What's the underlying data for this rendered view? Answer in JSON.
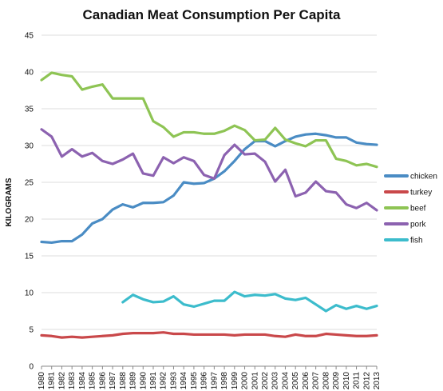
{
  "chart_data": {
    "type": "line",
    "title": "Canadian Meat Consumption Per Capita",
    "xlabel": "",
    "ylabel": "KILOGRAMS",
    "ylim": [
      0,
      45
    ],
    "yticks": [
      0,
      5,
      10,
      15,
      20,
      25,
      30,
      35,
      40,
      45
    ],
    "grid": "horizontal",
    "legend_position": "right",
    "x": [
      "1980",
      "1981",
      "1982",
      "1983",
      "1984",
      "1985",
      "1986",
      "1987",
      "1988",
      "1989",
      "1990",
      "1991",
      "1992",
      "1993",
      "1994",
      "1995",
      "1996",
      "1997",
      "1998",
      "1999",
      "2000",
      "2001",
      "2002",
      "2003",
      "2004",
      "2005",
      "2006",
      "2007",
      "2008",
      "2009",
      "2010",
      "2011",
      "2012",
      "2013"
    ],
    "series": [
      {
        "name": "chicken",
        "color": "#4a8cc4",
        "values": [
          16.9,
          16.8,
          17.0,
          17.0,
          17.9,
          19.4,
          20.0,
          21.3,
          22.0,
          21.6,
          22.2,
          22.2,
          22.3,
          23.2,
          25.0,
          24.8,
          24.9,
          25.5,
          26.5,
          27.9,
          29.5,
          30.6,
          30.6,
          29.9,
          30.6,
          31.2,
          31.5,
          31.6,
          31.4,
          31.1,
          31.1,
          30.4,
          30.2,
          30.1
        ]
      },
      {
        "name": "turkey",
        "color": "#c9484a",
        "values": [
          4.2,
          4.1,
          3.9,
          4.0,
          3.9,
          4.0,
          4.1,
          4.2,
          4.4,
          4.5,
          4.5,
          4.5,
          4.6,
          4.4,
          4.4,
          4.3,
          4.3,
          4.3,
          4.3,
          4.2,
          4.3,
          4.3,
          4.3,
          4.1,
          4.0,
          4.3,
          4.1,
          4.1,
          4.4,
          4.3,
          4.2,
          4.1,
          4.1,
          4.2
        ]
      },
      {
        "name": "beef",
        "color": "#8ec454",
        "values": [
          38.9,
          39.9,
          39.6,
          39.4,
          37.6,
          38.0,
          38.3,
          36.4,
          36.4,
          36.4,
          36.4,
          33.3,
          32.5,
          31.2,
          31.8,
          31.8,
          31.6,
          31.6,
          32.0,
          32.7,
          32.1,
          30.7,
          30.8,
          32.4,
          30.8,
          30.3,
          29.9,
          30.7,
          30.7,
          28.2,
          27.9,
          27.3,
          27.5,
          27.1
        ]
      },
      {
        "name": "pork",
        "color": "#8c62b0",
        "values": [
          32.2,
          31.2,
          28.5,
          29.5,
          28.5,
          29.0,
          27.9,
          27.5,
          28.1,
          28.9,
          26.2,
          25.9,
          28.4,
          27.6,
          28.4,
          27.9,
          26.0,
          25.5,
          28.7,
          30.1,
          28.8,
          28.9,
          27.8,
          25.1,
          26.7,
          23.1,
          23.6,
          25.1,
          23.8,
          23.6,
          22.0,
          21.5,
          22.2,
          21.2
        ]
      },
      {
        "name": "fish",
        "color": "#3cbccc",
        "values": [
          null,
          null,
          null,
          null,
          null,
          null,
          null,
          null,
          8.7,
          9.7,
          9.1,
          8.7,
          8.8,
          9.5,
          8.4,
          8.1,
          8.5,
          8.9,
          8.9,
          10.1,
          9.5,
          9.7,
          9.6,
          9.8,
          9.2,
          9.0,
          9.3,
          8.4,
          7.5,
          8.3,
          7.8,
          8.2,
          7.8,
          8.2
        ]
      }
    ]
  }
}
